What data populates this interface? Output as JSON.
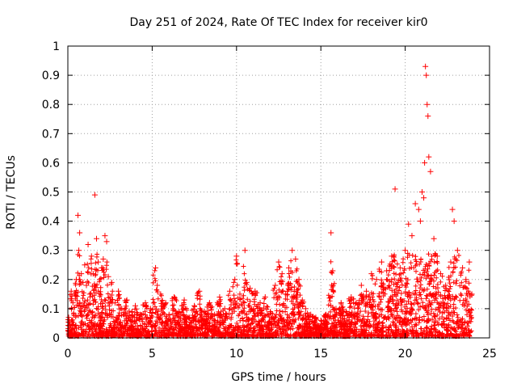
{
  "chart_data": {
    "type": "scatter",
    "title": "Day 251 of 2024, Rate Of TEC Index for receiver kir0",
    "xlabel": "GPS time / hours",
    "ylabel": "ROTI / TECUs",
    "xlim": [
      0,
      25
    ],
    "ylim": [
      0,
      1
    ],
    "xticks": [
      "0",
      "5",
      "10",
      "15",
      "20",
      "25"
    ],
    "yticks": [
      "0",
      "0.1",
      "0.2",
      "0.3",
      "0.4",
      "0.5",
      "0.6",
      "0.7",
      "0.8",
      "0.9",
      "1"
    ],
    "grid": true,
    "marker": "+",
    "color": "#ff0000",
    "series": [
      {
        "name": "ROTI",
        "x": [
          0.05,
          0.2,
          0.3,
          0.5,
          0.6,
          0.65,
          0.7,
          0.8,
          0.9,
          1.0,
          1.1,
          1.2,
          1.3,
          1.4,
          1.5,
          1.6,
          1.7,
          1.8,
          1.9,
          2.0,
          2.1,
          2.2,
          2.3,
          2.4,
          2.5,
          2.6,
          2.8,
          3.0,
          3.2,
          3.5,
          3.8,
          4.0,
          4.3,
          4.6,
          4.9,
          5.2,
          5.3,
          5.5,
          5.8,
          6.0,
          6.3,
          6.6,
          6.9,
          7.2,
          7.5,
          7.8,
          8.1,
          8.4,
          8.7,
          9.0,
          9.3,
          9.6,
          9.9,
          10.0,
          10.2,
          10.5,
          10.6,
          10.8,
          11.1,
          11.4,
          11.7,
          12.0,
          12.3,
          12.5,
          12.7,
          12.9,
          13.1,
          13.3,
          13.5,
          13.7,
          13.9,
          14.1,
          14.4,
          14.7,
          15.0,
          15.3,
          15.6,
          15.7,
          15.9,
          16.2,
          16.5,
          16.8,
          17.1,
          17.4,
          17.7,
          18.0,
          18.3,
          18.6,
          18.9,
          19.2,
          19.4,
          19.7,
          20.0,
          20.2,
          20.4,
          20.6,
          20.8,
          20.9,
          21.0,
          21.1,
          21.15,
          21.2,
          21.25,
          21.3,
          21.35,
          21.4,
          21.5,
          21.7,
          21.9,
          22.1,
          22.4,
          22.7,
          22.8,
          22.9,
          23.1,
          23.4,
          23.6,
          23.8,
          23.95
        ],
        "y": [
          0.07,
          0.16,
          0.12,
          0.2,
          0.42,
          0.3,
          0.36,
          0.22,
          0.19,
          0.25,
          0.18,
          0.32,
          0.15,
          0.28,
          0.22,
          0.49,
          0.34,
          0.26,
          0.2,
          0.24,
          0.27,
          0.35,
          0.33,
          0.21,
          0.14,
          0.19,
          0.12,
          0.16,
          0.1,
          0.13,
          0.09,
          0.11,
          0.08,
          0.12,
          0.1,
          0.24,
          0.18,
          0.15,
          0.12,
          0.08,
          0.14,
          0.09,
          0.13,
          0.07,
          0.11,
          0.16,
          0.09,
          0.12,
          0.08,
          0.14,
          0.1,
          0.16,
          0.2,
          0.28,
          0.15,
          0.3,
          0.19,
          0.17,
          0.16,
          0.12,
          0.14,
          0.09,
          0.18,
          0.26,
          0.22,
          0.15,
          0.24,
          0.3,
          0.27,
          0.2,
          0.13,
          0.1,
          0.08,
          0.07,
          0.06,
          0.08,
          0.36,
          0.23,
          0.1,
          0.12,
          0.09,
          0.14,
          0.12,
          0.18,
          0.16,
          0.22,
          0.2,
          0.26,
          0.23,
          0.28,
          0.51,
          0.24,
          0.3,
          0.39,
          0.35,
          0.46,
          0.44,
          0.4,
          0.5,
          0.48,
          0.6,
          0.93,
          0.9,
          0.8,
          0.76,
          0.62,
          0.57,
          0.34,
          0.28,
          0.22,
          0.18,
          0.26,
          0.44,
          0.4,
          0.3,
          0.24,
          0.2,
          0.26,
          0.15
        ]
      }
    ]
  }
}
